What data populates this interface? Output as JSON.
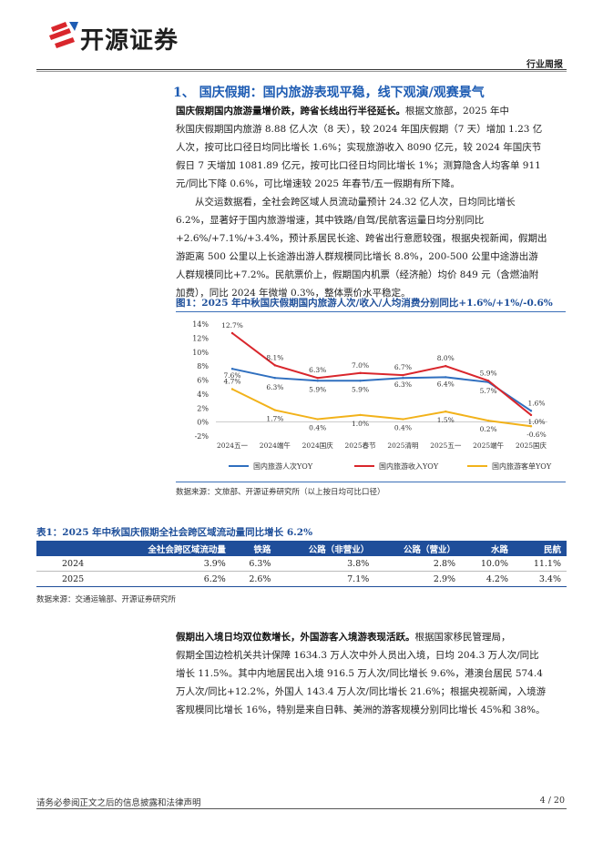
{
  "header": {
    "logo_text": "开源证券",
    "report_type": "行业周报"
  },
  "section": {
    "title": "1、 国庆假期：国内旅游表现平稳，线下观演/观赛景气"
  },
  "paragraphs": {
    "p1_lead": "国庆假期国内旅游量增价跌，跨省长线出行半径延长。",
    "p1_l1_rest": "根据文旅部，2025 年中",
    "p1_l2": "秋国庆假期国内旅游 8.88 亿人次（8 天），较 2024 年国庆假期（7 天）增加 1.23 亿",
    "p1_l3": "人次，按可比口径日均同比增长 1.6%；实现旅游收入 8090 亿元，较 2024 年国庆节",
    "p1_l4": "假日 7 天增加 1081.89 亿元，按可比口径日均同比增长 1%；测算隐含人均客单 911",
    "p1_l5": "元/同比下降 0.6%，可比增速较 2025 年春节/五一假期有所下降。",
    "p2_l1": "从交运数据看，全社会跨区域人员流动量预计 24.32 亿人次，日均同比增长",
    "p2_l2": "6.2%，显著好于国内旅游增速，其中铁路/自驾/民航客运量日均分别同比",
    "p2_l3": "+2.6%/+7.1%/+3.4%，预计系居民长途、跨省出行意愿较强，根据央视新闻，假期出",
    "p2_l4": "游距离 500 公里以上长途游出游人群规模同比增长 8.8%，200-500 公里中途游出游",
    "p2_l5": "人群规模同比+7.2%。民航票价上，假期国内机票（经济舱）均价 849 元（含燃油附",
    "p2_l6": "加费），同比 2024 年微增 0.3%，整体票价水平稳定。",
    "p3_lead": "假期出入境日均双位数增长，外国游客入境游表现活跃。",
    "p3_l1_rest": "根据国家移民管理局，",
    "p3_l2": "假期全国边检机关共计保障 1634.3 万人次中外人员出入境，日均 204.3 万人次/同比",
    "p3_l3": "增长 11.5%。其中内地居民出入境 916.5 万人次/同比增长 9.6%，港澳台居民 574.4",
    "p3_l4": "万人次/同比+12.2%，外国人 143.4 万人次/同比增长 21.6%；根据央视新闻，入境游",
    "p3_l5": "客规模同比增长 16%，特别是来自日韩、美洲的游客规模分别同比增长 45%和 38%。"
  },
  "figure": {
    "title": "图1：2025 年中秋国庆假期国内旅游人次/收入/人均消费分别同比+1.6%/+1%/-0.6%",
    "source": "数据来源：文旅部、开源证券研究所（以上按日均可比口径）"
  },
  "chart_data": {
    "type": "line",
    "categories": [
      "2024五一",
      "2024端午",
      "2024国庆",
      "2025春节",
      "2025清明",
      "2025五一",
      "2025端午",
      "2025国庆"
    ],
    "ylim": [
      -2,
      14
    ],
    "yticks": [
      "14%",
      "12%",
      "10%",
      "8%",
      "6%",
      "4%",
      "2%",
      "0%",
      "-2%"
    ],
    "series": [
      {
        "name": "国内旅游人次YOY",
        "color": "#2f6fbf",
        "values": [
          7.6,
          6.3,
          5.9,
          5.9,
          6.3,
          6.4,
          5.7,
          1.6
        ],
        "labels": [
          "7.6%",
          "6.3%",
          "5.9%",
          "5.9%",
          "6.3%",
          "6.4%",
          "5.7%",
          "1.6%"
        ]
      },
      {
        "name": "国内旅游收入YOY",
        "color": "#d9262c",
        "values": [
          12.7,
          8.1,
          6.3,
          7.0,
          6.7,
          8.0,
          5.9,
          1.0
        ],
        "labels": [
          "12.7%",
          "8.1%",
          "6.3%",
          "7.0%",
          "6.7%",
          "8.0%",
          "5.9%",
          "1.0%"
        ]
      },
      {
        "name": "国内旅游客单YOY",
        "color": "#f2b21a",
        "values": [
          4.7,
          1.7,
          0.4,
          1.0,
          0.4,
          1.5,
          0.2,
          -0.6
        ],
        "labels": [
          "4.7%",
          "1.7%",
          "0.4%",
          "1.0%",
          "0.4%",
          "1.5%",
          "0.2%",
          "-0.6%"
        ]
      }
    ],
    "legend": "bottom",
    "grid": false
  },
  "table": {
    "title": "表1：2025 年中秋国庆假期全社会跨区域流动量同比增长 6.2%",
    "headers": [
      "",
      "全社会跨区域流动量",
      "铁路",
      "公路（非营业）",
      "公路（营业）",
      "水路",
      "民航"
    ],
    "rows": [
      [
        "2024",
        "3.9%",
        "6.3%",
        "3.8%",
        "2.8%",
        "10.0%",
        "11.1%"
      ],
      [
        "2025",
        "6.2%",
        "2.6%",
        "7.1%",
        "2.9%",
        "4.2%",
        "3.4%"
      ]
    ],
    "source": "数据来源：交通运输部、开源证券研究所"
  },
  "footer": {
    "disclaimer": "请务必参阅正文之后的信息披露和法律声明",
    "page": "4 / 20"
  },
  "colors": {
    "accent": "#1e5cb3",
    "table_header": "#1f4e9a"
  }
}
